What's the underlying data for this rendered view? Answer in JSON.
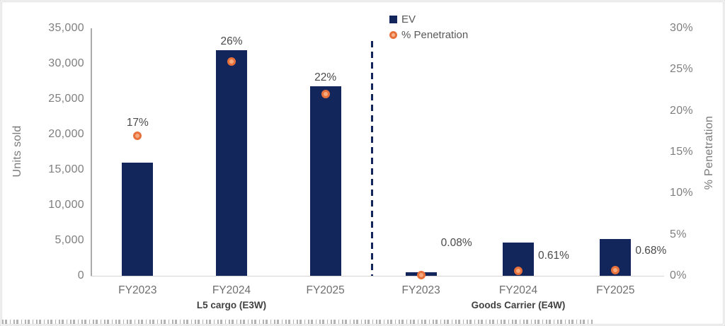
{
  "chart_data": {
    "type": "bar",
    "secondary_type": "scatter",
    "title": "",
    "ylabel_left": "Units sold",
    "ylabel_right": "% Penetration",
    "groups": [
      {
        "label": "L5 cargo (E3W)",
        "categories": [
          "FY2023",
          "FY2024",
          "FY2025"
        ]
      },
      {
        "label": "Goods Carrier (E4W)",
        "categories": [
          "FY2023",
          "FY2024",
          "FY2025"
        ]
      }
    ],
    "series": [
      {
        "name": "EV",
        "type": "bar",
        "axis": "left",
        "values": [
          16000,
          31900,
          26800,
          500,
          4700,
          5200
        ]
      },
      {
        "name": "% Penetration",
        "type": "scatter",
        "axis": "right",
        "values": [
          17,
          26,
          22,
          0.08,
          0.61,
          0.68
        ],
        "labels": [
          "17%",
          "26%",
          "22%",
          "0.08%",
          "0.61%",
          "0.68%"
        ]
      }
    ],
    "left_axis": {
      "min": 0,
      "max": 35000,
      "tick_labels": [
        "0",
        "5,000",
        "10,000",
        "15,000",
        "20,000",
        "25,000",
        "30,000",
        "35,000"
      ]
    },
    "right_axis": {
      "min": 0,
      "max": 30,
      "tick_labels": [
        "0%",
        "5%",
        "10%",
        "15%",
        "20%",
        "25%",
        "30%"
      ]
    },
    "legend": [
      {
        "label": "EV",
        "marker": "square",
        "color": "#13265c"
      },
      {
        "label": "% Penetration",
        "marker": "circle",
        "color": "#e8713b"
      }
    ],
    "legend_position": "top-center",
    "grid": false,
    "divider_between_groups": true,
    "colors": {
      "bar": "#13265c",
      "marker_border": "#e8713b",
      "marker_fill": "#f5aa7d",
      "divider": "#13265c",
      "tick_text": "#7f7f7f",
      "data_label_text": "#4a4a4a",
      "axis_line": "#aaaaaa"
    }
  }
}
